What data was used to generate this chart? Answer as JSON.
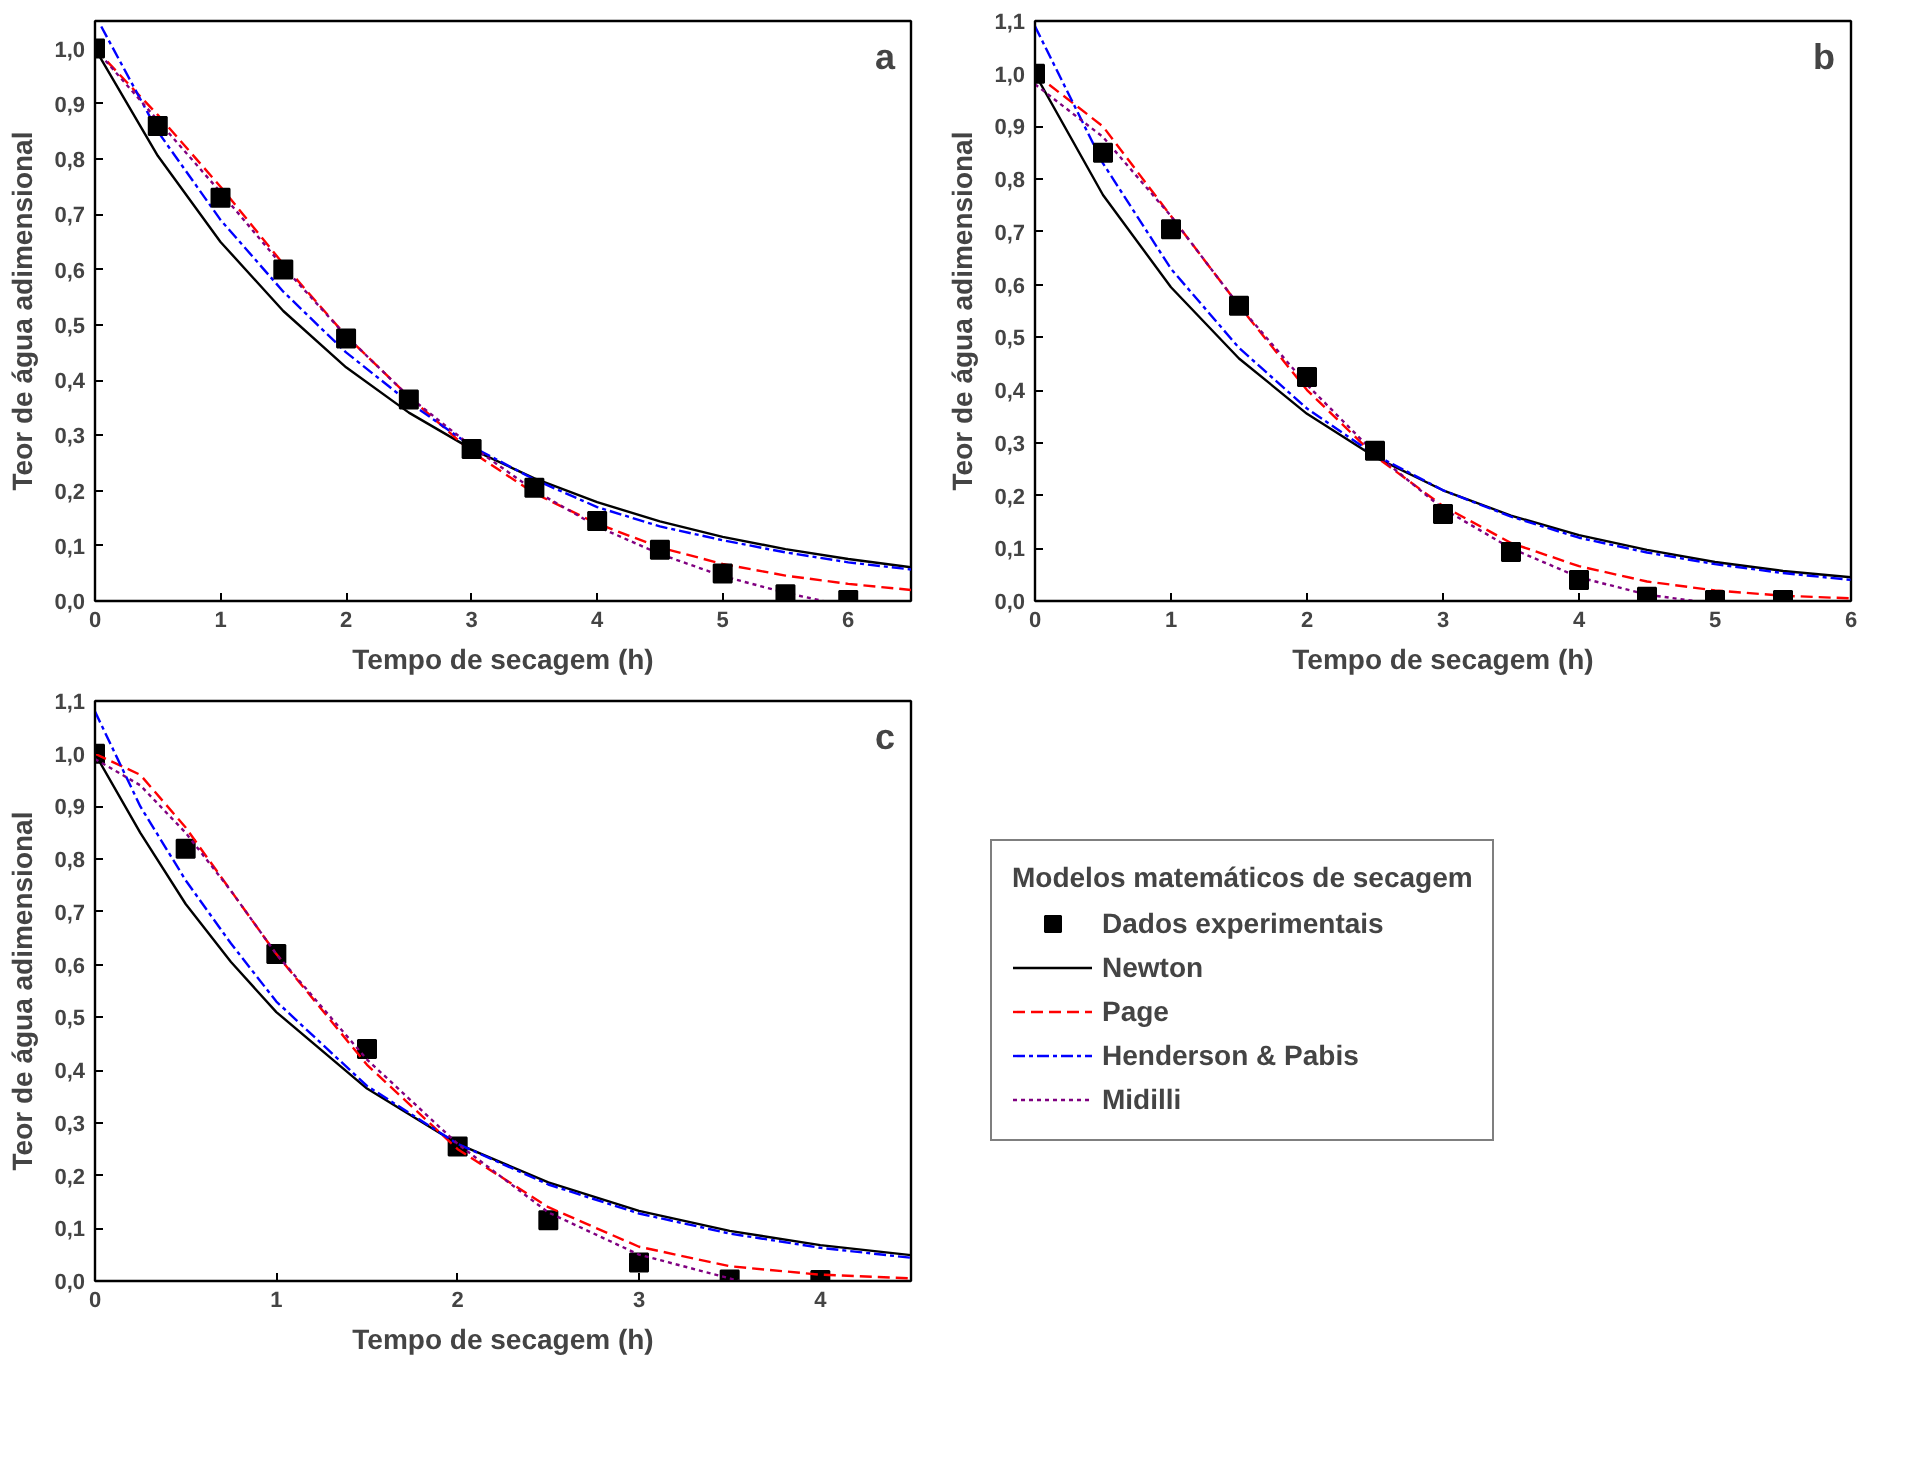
{
  "chart_data": [
    {
      "type": "line",
      "xlabel": "Tempo de secagem (h)",
      "ylabel": "Teor de água adimensional",
      "annotations": [
        "a"
      ],
      "xlim": [
        0,
        6.5
      ],
      "ylim": [
        0,
        1.05
      ],
      "xticks": [
        0,
        1,
        2,
        3,
        4,
        5,
        6
      ],
      "yticks": [
        {
          "value": 0,
          "label": "0,0"
        },
        {
          "value": 0.1,
          "label": "0,1"
        },
        {
          "value": 0.2,
          "label": "0,2"
        },
        {
          "value": 0.3,
          "label": "0,3"
        },
        {
          "value": 0.4,
          "label": "0,4"
        },
        {
          "value": 0.5,
          "label": "0,5"
        },
        {
          "value": 0.6,
          "label": "0,6"
        },
        {
          "value": 0.7,
          "label": "0,7"
        },
        {
          "value": 0.8,
          "label": "0,8"
        },
        {
          "value": 0.9,
          "label": "0,9"
        },
        {
          "value": 1.0,
          "label": "1,0"
        }
      ],
      "grid": false,
      "legend": false,
      "series": [
        {
          "type": "line",
          "color": "#000000",
          "line_style": "solid",
          "x": [
            0,
            0.5,
            1,
            1.5,
            2,
            2.5,
            3,
            3.5,
            4,
            4.5,
            5,
            5.5,
            6,
            6.5
          ],
          "values": [
            1.0,
            0.806,
            0.65,
            0.525,
            0.423,
            0.341,
            0.275,
            0.222,
            0.179,
            0.144,
            0.116,
            0.094,
            0.076,
            0.061
          ]
        },
        {
          "type": "line",
          "color": "#ff0000",
          "line_style": "dashed",
          "x": [
            0,
            0.5,
            1,
            1.5,
            2,
            2.5,
            3,
            3.5,
            4,
            4.5,
            5,
            5.5,
            6,
            6.5
          ],
          "values": [
            1.0,
            0.88,
            0.75,
            0.61,
            0.48,
            0.37,
            0.27,
            0.195,
            0.14,
            0.097,
            0.067,
            0.046,
            0.031,
            0.02
          ]
        },
        {
          "type": "line",
          "color": "#0000ff",
          "line_style": "dashdot",
          "x": [
            0.05,
            0.5,
            1,
            1.5,
            2,
            2.5,
            3,
            3.5,
            4,
            4.5,
            5,
            5.5,
            6,
            6.5
          ],
          "values": [
            1.04,
            0.85,
            0.69,
            0.56,
            0.45,
            0.36,
            0.28,
            0.22,
            0.17,
            0.135,
            0.11,
            0.088,
            0.07,
            0.057
          ]
        },
        {
          "type": "line",
          "color": "#800080",
          "line_style": "dotted",
          "x": [
            0,
            0.5,
            1,
            1.5,
            2,
            2.5,
            3,
            3.5,
            4,
            4.5,
            5,
            5.5,
            5.8
          ],
          "values": [
            1.0,
            0.87,
            0.74,
            0.605,
            0.48,
            0.37,
            0.28,
            0.2,
            0.135,
            0.085,
            0.045,
            0.015,
            0.0
          ]
        },
        {
          "type": "scatter",
          "color": "#000000",
          "marker": "square",
          "x": [
            0,
            0.5,
            1,
            1.5,
            2,
            2.5,
            3,
            3.5,
            4,
            4.5,
            5,
            5.5,
            6
          ],
          "values": [
            1.0,
            0.86,
            0.73,
            0.6,
            0.475,
            0.365,
            0.275,
            0.205,
            0.145,
            0.093,
            0.05,
            0.012,
            0.002
          ]
        }
      ]
    },
    {
      "type": "line",
      "xlabel": "Tempo de secagem (h)",
      "ylabel": "Teor de água adimensional",
      "annotations": [
        "b"
      ],
      "xlim": [
        0,
        6
      ],
      "ylim": [
        0,
        1.1
      ],
      "xticks": [
        0,
        1,
        2,
        3,
        4,
        5,
        6
      ],
      "yticks": [
        {
          "value": 0,
          "label": "0,0"
        },
        {
          "value": 0.1,
          "label": "0,1"
        },
        {
          "value": 0.2,
          "label": "0,2"
        },
        {
          "value": 0.3,
          "label": "0,3"
        },
        {
          "value": 0.4,
          "label": "0,4"
        },
        {
          "value": 0.5,
          "label": "0,5"
        },
        {
          "value": 0.6,
          "label": "0,6"
        },
        {
          "value": 0.7,
          "label": "0,7"
        },
        {
          "value": 0.8,
          "label": "0,8"
        },
        {
          "value": 0.9,
          "label": "0,9"
        },
        {
          "value": 1.0,
          "label": "1,0"
        },
        {
          "value": 1.1,
          "label": "1,1"
        }
      ],
      "grid": false,
      "legend": false,
      "series": [
        {
          "type": "line",
          "color": "#000000",
          "line_style": "solid",
          "x": [
            0,
            0.5,
            1,
            1.5,
            2,
            2.5,
            3,
            3.5,
            4,
            4.5,
            5,
            5.5,
            6
          ],
          "values": [
            1.0,
            0.77,
            0.595,
            0.46,
            0.355,
            0.273,
            0.21,
            0.162,
            0.125,
            0.097,
            0.074,
            0.057,
            0.045
          ]
        },
        {
          "type": "line",
          "color": "#ff0000",
          "line_style": "dashed",
          "x": [
            0,
            0.5,
            1,
            1.5,
            2,
            2.5,
            3,
            3.5,
            4,
            4.5,
            5,
            5.5,
            6
          ],
          "values": [
            1.0,
            0.9,
            0.73,
            0.56,
            0.4,
            0.275,
            0.18,
            0.11,
            0.066,
            0.037,
            0.02,
            0.01,
            0.005
          ]
        },
        {
          "type": "line",
          "color": "#0000ff",
          "line_style": "dashdot",
          "x": [
            0,
            0.5,
            1,
            1.5,
            2,
            2.5,
            3,
            3.5,
            4,
            4.5,
            5,
            5.5,
            6
          ],
          "values": [
            1.09,
            0.83,
            0.63,
            0.48,
            0.365,
            0.277,
            0.21,
            0.16,
            0.12,
            0.092,
            0.07,
            0.053,
            0.04
          ]
        },
        {
          "type": "line",
          "color": "#800080",
          "line_style": "dotted",
          "x": [
            0,
            0.5,
            1,
            1.5,
            2,
            2.5,
            3,
            3.5,
            4,
            4.5,
            4.85
          ],
          "values": [
            0.98,
            0.88,
            0.73,
            0.56,
            0.41,
            0.28,
            0.175,
            0.1,
            0.045,
            0.012,
            0.0
          ]
        },
        {
          "type": "scatter",
          "color": "#000000",
          "marker": "square",
          "x": [
            0,
            0.5,
            1,
            1.5,
            2,
            2.5,
            3,
            3.5,
            4,
            4.5,
            5,
            5.5
          ],
          "values": [
            1.0,
            0.85,
            0.705,
            0.56,
            0.425,
            0.285,
            0.165,
            0.093,
            0.04,
            0.008,
            0.002,
            0.002
          ]
        }
      ]
    },
    {
      "type": "line",
      "xlabel": "Tempo de secagem (h)",
      "ylabel": "Teor de água adimensional",
      "annotations": [
        "c"
      ],
      "legend_title": "Modelos matemáticos de secagem",
      "xlim": [
        0,
        4.5
      ],
      "ylim": [
        0,
        1.1
      ],
      "xticks": [
        0,
        1,
        2,
        3,
        4
      ],
      "yticks": [
        {
          "value": 0,
          "label": "0,0"
        },
        {
          "value": 0.1,
          "label": "0,1"
        },
        {
          "value": 0.2,
          "label": "0,2"
        },
        {
          "value": 0.3,
          "label": "0,3"
        },
        {
          "value": 0.4,
          "label": "0,4"
        },
        {
          "value": 0.5,
          "label": "0,5"
        },
        {
          "value": 0.6,
          "label": "0,6"
        },
        {
          "value": 0.7,
          "label": "0,7"
        },
        {
          "value": 0.8,
          "label": "0,8"
        },
        {
          "value": 0.9,
          "label": "0,9"
        },
        {
          "value": 1.0,
          "label": "1,0"
        },
        {
          "value": 1.1,
          "label": "1,1"
        }
      ],
      "grid": false,
      "legend": "right",
      "series": [
        {
          "type": "scatter",
          "name": "Dados experimentais",
          "color": "#000000",
          "marker": "square",
          "x": [
            0,
            0.5,
            1,
            1.5,
            2,
            2.5,
            3,
            3.5,
            4
          ],
          "values": [
            1.0,
            0.82,
            0.62,
            0.44,
            0.255,
            0.115,
            0.035,
            0.003,
            0.002
          ]
        },
        {
          "type": "line",
          "name": "Newton",
          "color": "#000000",
          "line_style": "solid",
          "x": [
            0,
            0.25,
            0.5,
            0.75,
            1,
            1.5,
            2,
            2.5,
            3,
            3.5,
            4,
            4.5
          ],
          "values": [
            1.0,
            0.85,
            0.715,
            0.605,
            0.51,
            0.365,
            0.26,
            0.187,
            0.133,
            0.095,
            0.068,
            0.049
          ]
        },
        {
          "type": "line",
          "name": "Page",
          "color": "#ff0000",
          "line_style": "dashed",
          "x": [
            0,
            0.25,
            0.5,
            0.75,
            1,
            1.5,
            2,
            2.5,
            3,
            3.5,
            4,
            4.5
          ],
          "values": [
            1.0,
            0.96,
            0.86,
            0.74,
            0.62,
            0.41,
            0.25,
            0.14,
            0.065,
            0.028,
            0.012,
            0.005
          ]
        },
        {
          "type": "line",
          "name": "Henderson & Pabis",
          "color": "#0000ff",
          "line_style": "dashdot",
          "x": [
            0,
            0.25,
            0.5,
            0.75,
            1,
            1.5,
            2,
            2.5,
            3,
            3.5,
            4,
            4.5
          ],
          "values": [
            1.08,
            0.9,
            0.76,
            0.64,
            0.53,
            0.37,
            0.26,
            0.183,
            0.128,
            0.09,
            0.063,
            0.044
          ]
        },
        {
          "type": "line",
          "name": "Midilli",
          "color": "#800080",
          "line_style": "dotted",
          "x": [
            0,
            0.25,
            0.5,
            0.75,
            1,
            1.5,
            2,
            2.5,
            3,
            3.5,
            3.55
          ],
          "values": [
            0.99,
            0.94,
            0.85,
            0.74,
            0.62,
            0.42,
            0.26,
            0.13,
            0.05,
            0.005,
            0.0
          ]
        }
      ]
    }
  ]
}
